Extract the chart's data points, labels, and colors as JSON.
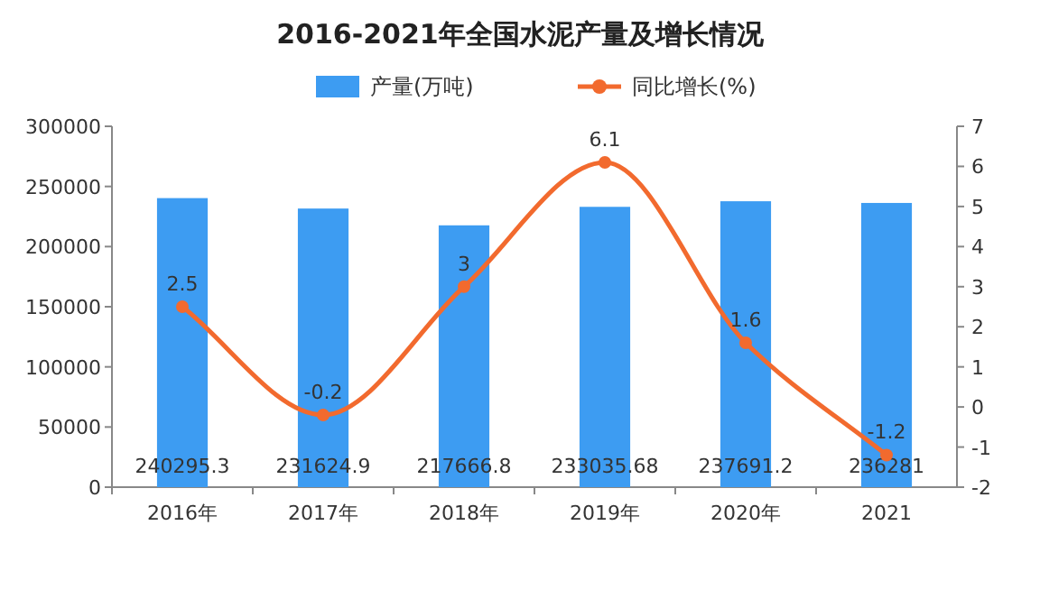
{
  "chart_data": {
    "type": "bar",
    "title": "2016-2021年全国水泥产量及增长情况",
    "categories": [
      "2016年",
      "2017年",
      "2018年",
      "2019年",
      "2020年",
      "2021"
    ],
    "series": [
      {
        "name": "产量(万吨)",
        "color": "#3d9cf2",
        "values": [
          240295.3,
          231624.9,
          217666.8,
          233035.68,
          237691.2,
          236281
        ]
      },
      {
        "name": "同比增长(%)",
        "color": "#f26a2e",
        "type": "line",
        "axis": "y2",
        "values": [
          2.5,
          -0.2,
          3,
          6.1,
          1.6,
          -1.2
        ]
      }
    ],
    "ylim": [
      0,
      300000
    ],
    "yticks": [
      0,
      50000,
      100000,
      150000,
      200000,
      250000,
      300000
    ],
    "y2lim": [
      -2,
      7
    ],
    "y2ticks": [
      -2,
      -1,
      0,
      1,
      2,
      3,
      4,
      5,
      6,
      7
    ],
    "data_labels": true,
    "legend": "top",
    "marker": "circle"
  }
}
